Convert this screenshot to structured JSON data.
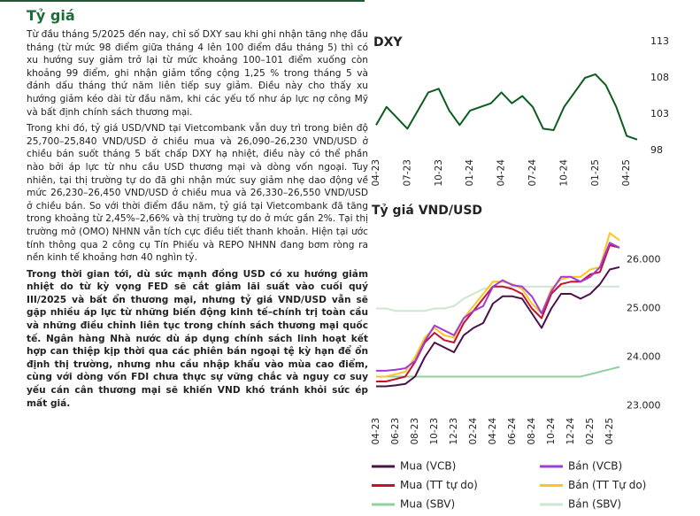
{
  "header": {
    "title": "Tỷ giá"
  },
  "paragraphs": [
    "Từ đầu tháng 5/2025 đến nay, chỉ số DXY sau khi ghi nhận tăng nhẹ đầu tháng (từ mức 98 điểm giữa tháng 4 lên 100 điểm đầu tháng 5) thì có xu hướng suy giảm trở lại từ mức khoảng 100–101 điểm xuống còn khoảng 99 điểm, ghi nhận giảm tổng cộng 1,25 % trong tháng 5 và đánh dấu tháng thứ năm liên tiếp suy giảm. Điều này cho thấy xu hướng giảm kéo dài từ đầu năm, khi các yếu tố như áp lực nợ công Mỹ và bất định chính sách thương mại.",
    "Trong khi đó, tỷ giá USD/VND tại Vietcombank vẫn duy trì trong biên độ 25,700–25,840 VND/USD ở chiều mua và 26,090–26,230 VND/USD ở chiều bán suốt tháng 5 bất chấp DXY hạ nhiệt, điều này có thể phần nào bởi áp lực từ nhu cầu USD thương mại và dòng vốn ngoại. Tuy nhiên, tại thị trường tự do đã ghi nhận mức suy giảm nhẹ dao động về mức 26,230–26,450 VND/USD ở chiều mua và 26,330–26,550 VND/USD ở chiều bán. So với thời điểm đầu năm, tỷ giá tại Vietcombank đã tăng trong khoảng từ 2,45%–2,66% và thị trường tự do ở mức gần 2%. Tại thị trường mở (OMO) NHNN vẫn tích cực điều tiết thanh khoản. Hiện tại ước tính thông qua 2 công cụ Tín Phiếu và REPO NHNN đang bơm ròng ra nền kinh tế khoảng hơn 40 nghìn tỷ.",
    "Trong thời gian tới, dù sức mạnh đồng USD có xu hướng giảm nhiệt do từ kỳ vọng FED sẽ cắt giảm lãi suất vào cuối quý III/2025 và bất ổn thương mại, nhưng tỷ giá VND/USD vẫn sẽ gặp nhiều áp lực từ những biến động kinh tế–chính trị toàn cầu và những điều chỉnh liên tục trong chính sách thương mại quốc tế. Ngân hàng Nhà nước dù áp dụng chính sách linh hoạt kết hợp can thiệp kịp thời qua các phiên bán ngoại tệ kỳ hạn để ổn định thị trường, nhưng nhu cầu nhập khẩu vào mùa cao điểm, cùng với dòng vốn FDI chưa thực sự vững chắc và nguy cơ suy yếu cán cân thương mại sẽ khiến VND khó tránh khỏi sức ép mất giá."
  ],
  "chart_data": [
    {
      "type": "line",
      "title": "DXY",
      "categories": [
        "04-23",
        null,
        null,
        "07-23",
        null,
        null,
        "10-23",
        null,
        null,
        "01-24",
        null,
        null,
        "04-24",
        null,
        null,
        "07-24",
        null,
        null,
        "10-24",
        null,
        null,
        "01-25",
        null,
        null,
        "04-25",
        null
      ],
      "values": [
        101.5,
        104,
        102.5,
        101,
        103.5,
        106,
        106.5,
        103.5,
        101.5,
        103.5,
        104,
        104.5,
        106,
        104.5,
        105.5,
        104,
        101,
        100.8,
        104,
        106,
        108,
        108.5,
        107,
        104,
        100,
        99.5
      ],
      "color": "#0b5d1e",
      "ylim": [
        98,
        113
      ],
      "yticks": [
        113,
        108,
        103,
        98
      ]
    },
    {
      "type": "line",
      "title": "Tỷ giá VND/USD",
      "categories": [
        "04-23",
        null,
        "06-23",
        null,
        "08-23",
        null,
        "10-23",
        null,
        "12-23",
        null,
        "02-24",
        null,
        "04-24",
        null,
        "06-24",
        null,
        "08-24",
        null,
        "10-24",
        null,
        "12-24",
        null,
        "02-25",
        null,
        "04-25",
        null
      ],
      "ylim": [
        22900,
        26700
      ],
      "yticks": [
        {
          "value": 26000,
          "label": "26.000"
        },
        {
          "value": 25000,
          "label": "25.000"
        },
        {
          "value": 24000,
          "label": "24.000"
        },
        {
          "value": 23000,
          "label": "23.000"
        }
      ],
      "series": [
        {
          "name": "Mua (VCB)",
          "color": "#4b1248",
          "values": [
            23400,
            23400,
            23420,
            23450,
            23600,
            24000,
            24300,
            24200,
            24100,
            24450,
            24600,
            24700,
            25100,
            25250,
            25250,
            25200,
            24900,
            24600,
            25000,
            25300,
            25300,
            25200,
            25300,
            25500,
            25800,
            25850
          ]
        },
        {
          "name": "Bán (VCB)",
          "color": "#a23bd6",
          "values": [
            23720,
            23720,
            23740,
            23770,
            23920,
            24330,
            24650,
            24550,
            24450,
            24800,
            24950,
            25050,
            25450,
            25580,
            25480,
            25450,
            25250,
            24900,
            25350,
            25650,
            25650,
            25550,
            25650,
            25850,
            26350,
            26250
          ]
        },
        {
          "name": "Mua (TT tự do)",
          "color": "#c8102e",
          "values": [
            23500,
            23500,
            23550,
            23600,
            23900,
            24300,
            24500,
            24350,
            24300,
            24700,
            24950,
            25200,
            25450,
            25450,
            25400,
            25300,
            25000,
            24800,
            25300,
            25500,
            25550,
            25550,
            25700,
            25750,
            26300,
            26250
          ]
        },
        {
          "name": "Bán (TT Tự do)",
          "color": "#f9c623",
          "values": [
            23600,
            23600,
            23650,
            23700,
            24000,
            24400,
            24600,
            24450,
            24400,
            24800,
            25050,
            25300,
            25550,
            25550,
            25500,
            25400,
            25100,
            24900,
            25400,
            25600,
            25650,
            25650,
            25800,
            25850,
            26550,
            26400
          ]
        },
        {
          "name": "Mua (SBV)",
          "color": "#8fd19e",
          "values": [
            23600,
            23600,
            23600,
            23600,
            23600,
            23600,
            23600,
            23600,
            23600,
            23600,
            23600,
            23600,
            23600,
            23600,
            23600,
            23600,
            23600,
            23600,
            23600,
            23600,
            23600,
            23600,
            23650,
            23700,
            23750,
            23800
          ]
        },
        {
          "name": "Bán (SBV)",
          "color": "#cde6cf",
          "values": [
            25000,
            25000,
            24950,
            24950,
            24950,
            24950,
            25000,
            25000,
            25050,
            25200,
            25300,
            25400,
            25450,
            25450,
            25450,
            25450,
            25450,
            25450,
            25450,
            25450,
            25450,
            25450,
            25450,
            25450,
            25450,
            25450
          ]
        }
      ]
    }
  ]
}
